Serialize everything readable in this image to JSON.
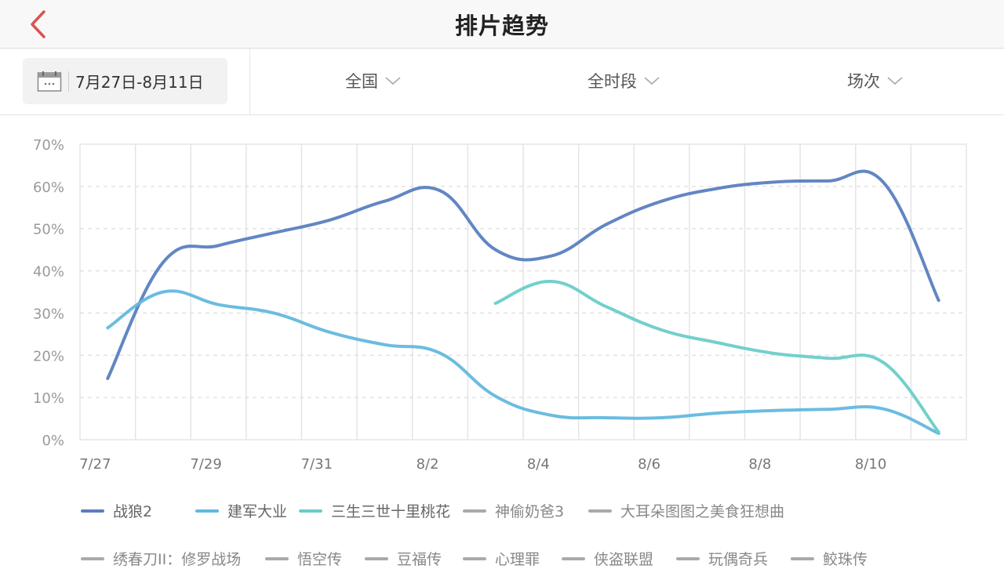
{
  "nav": {
    "title": "排片趋势",
    "back_icon": "chevron-left-icon",
    "accent_color": "#d9534f"
  },
  "filters": {
    "date_range": "7月27日-8月11日",
    "date_icon": "calendar-icon",
    "region": "全国",
    "time_slot": "全时段",
    "metric": "场次"
  },
  "chart_data": {
    "type": "line",
    "title": "排片趋势",
    "xlabel": "",
    "ylabel": "",
    "ylim": [
      0,
      70
    ],
    "y_ticks": [
      "0%",
      "10%",
      "20%",
      "30%",
      "40%",
      "50%",
      "60%",
      "70%"
    ],
    "x": [
      "7/27",
      "7/28",
      "7/29",
      "7/30",
      "7/31",
      "8/1",
      "8/2",
      "8/3",
      "8/4",
      "8/5",
      "8/6",
      "8/7",
      "8/8",
      "8/9",
      "8/10",
      "8/11"
    ],
    "x_tick_labels": [
      "7/27",
      "7/29",
      "7/31",
      "8/2",
      "8/4",
      "8/6",
      "8/8",
      "8/10"
    ],
    "grid": {
      "horizontal": "dashed",
      "vertical": "solid"
    },
    "legend_position": "bottom",
    "series": [
      {
        "name": "战狼2",
        "color": "#5a7fc0",
        "values": [
          14.5,
          42,
          46,
          49,
          52,
          56.5,
          59,
          45,
          43.5,
          51,
          56.5,
          59.5,
          61,
          61.3,
          61,
          33
        ]
      },
      {
        "name": "建军大业",
        "color": "#63b8de",
        "values": [
          26.5,
          35,
          32,
          30,
          25.5,
          22.5,
          20.5,
          10.3,
          5.8,
          5.2,
          5.2,
          6.3,
          6.9,
          7.2,
          7.3,
          1.5
        ]
      },
      {
        "name": "三生三世十里桃花",
        "color": "#6acdc9",
        "values": [
          null,
          null,
          null,
          null,
          null,
          null,
          null,
          32.3,
          37.5,
          31.5,
          26,
          23,
          20.5,
          19.3,
          18.3,
          1.8
        ]
      }
    ],
    "hidden_series": [
      "神偷奶爸3",
      "大耳朵图图之美食狂想曲",
      "绣春刀II：修罗战场",
      "悟空传",
      "豆福传",
      "心理罪",
      "侠盗联盟",
      "玩偶奇兵",
      "鲛珠传"
    ]
  },
  "legend": {
    "row1": [
      {
        "label": "战狼2",
        "color": "#5a7fc0",
        "active": true
      },
      {
        "label": "建军大业",
        "color": "#63b8de",
        "active": true
      },
      {
        "label": "三生三世十里桃花",
        "color": "#6acdc9",
        "active": true
      },
      {
        "label": "神偷奶爸3",
        "color": "#aaaaaa",
        "active": false
      },
      {
        "label": "大耳朵图图之美食狂想曲",
        "color": "#aaaaaa",
        "active": false
      }
    ],
    "row2": [
      {
        "label": "绣春刀II：修罗战场",
        "color": "#aaaaaa",
        "active": false
      },
      {
        "label": "悟空传",
        "color": "#aaaaaa",
        "active": false
      },
      {
        "label": "豆福传",
        "color": "#aaaaaa",
        "active": false
      },
      {
        "label": "心理罪",
        "color": "#aaaaaa",
        "active": false
      },
      {
        "label": "侠盗联盟",
        "color": "#aaaaaa",
        "active": false
      },
      {
        "label": "玩偶奇兵",
        "color": "#aaaaaa",
        "active": false
      },
      {
        "label": "鲛珠传",
        "color": "#aaaaaa",
        "active": false
      }
    ]
  }
}
